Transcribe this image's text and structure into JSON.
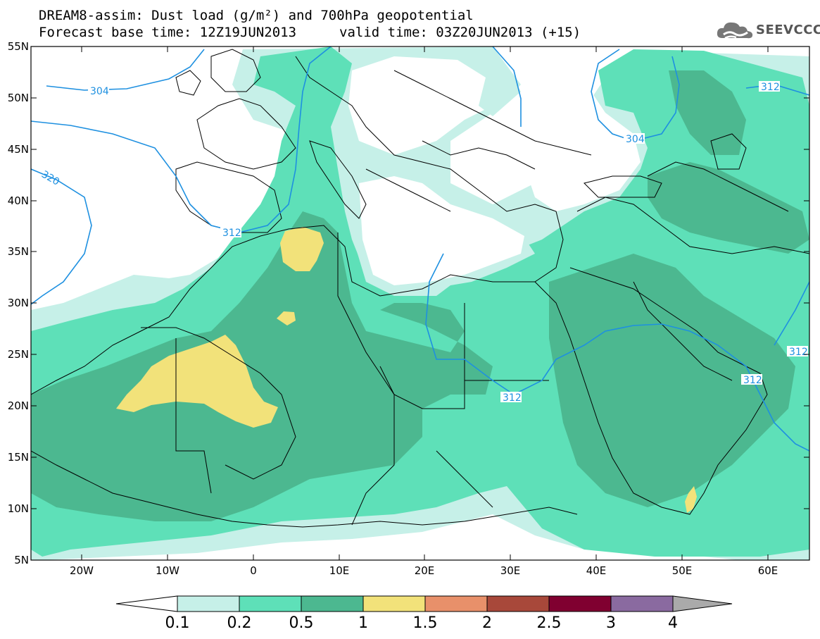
{
  "header": {
    "title": "DREAM8-assim: Dust load (g/m²) and 700hPa geopotential",
    "forecast_base": "Forecast base time: 12Z19JUN2013",
    "valid_time": "valid time: 03Z20JUN2013 (+15)"
  },
  "logo": {
    "text": "SEEVCCC",
    "icon": "cloud-logo-icon"
  },
  "axes": {
    "lat_labels": [
      "55N",
      "50N",
      "45N",
      "40N",
      "35N",
      "30N",
      "25N",
      "20N",
      "15N",
      "10N",
      "5N"
    ],
    "lon_labels": [
      "20W",
      "10W",
      "0",
      "10E",
      "20E",
      "30E",
      "40E",
      "50E",
      "60E"
    ]
  },
  "contours": {
    "labels": [
      "304",
      "304",
      "312",
      "312",
      "312",
      "312",
      "312",
      "320"
    ],
    "color": "#1e90e0"
  },
  "colorbar": {
    "labels": [
      "0.1",
      "0.2",
      "0.5",
      "1",
      "1.5",
      "2",
      "2.5",
      "3",
      "4"
    ],
    "colors": [
      "#ffffff",
      "#c6f0e8",
      "#5ee0b8",
      "#4cb890",
      "#f2e27a",
      "#e8906a",
      "#a8483a",
      "#800030",
      "#8a6aa0",
      "#aaaaaa"
    ]
  }
}
